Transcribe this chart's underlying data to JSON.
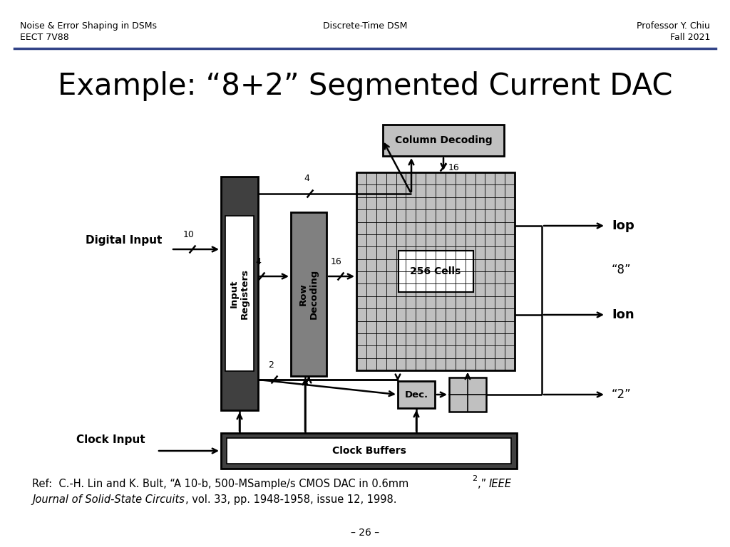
{
  "title": "Example: “8+2” Segmented Current DAC",
  "header_left_line1": "Noise & Error Shaping in DSMs",
  "header_left_line2": "EECT 7V88",
  "header_center": "Discrete-Time DSM",
  "header_right_line1": "Professor Y. Chiu",
  "header_right_line2": "Fall 2021",
  "footer": "– 26 –",
  "bg_color": "#ffffff",
  "dark_gray": "#404040",
  "med_gray": "#808080",
  "light_gray": "#c0c0c0"
}
